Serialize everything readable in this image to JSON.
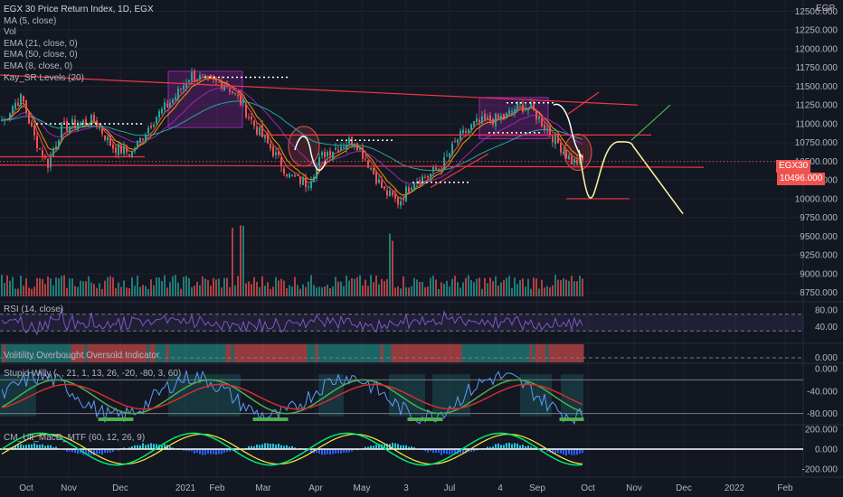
{
  "header": {
    "title": "EGX 30 Price Return Index, 1D, EGX",
    "currency": "EGP",
    "indicators": [
      "MA (5, close)",
      "Vol",
      "EMA (21, close, 0)",
      "EMA (50, close, 0)",
      "EMA (8, close, 0)",
      "Kay_SR Levels (20)"
    ]
  },
  "price_tag": {
    "symbol": "EGX30",
    "value": "10496.000"
  },
  "panes": {
    "rsi": {
      "label": "RSI (14, close)",
      "ticks": [
        "80.00",
        "40.00"
      ]
    },
    "volatility": {
      "label": "Volitility Overbought Oversold Indicator",
      "ticks": [
        "0.000"
      ]
    },
    "willy": {
      "label": "Stupid Willy (, , 21, 1, 13, 26, -20, -80, 3, 60)",
      "ticks": [
        "0.000",
        "-40.000",
        "-80.000"
      ]
    },
    "macd": {
      "label": "CM_Ult_MacD_MTF (60, 12, 26, 9)",
      "ticks": [
        "200.000",
        "0.000",
        "-200.000"
      ]
    }
  },
  "x_axis": [
    "Oct",
    "Nov",
    "Dec",
    "2021",
    "Feb",
    "Mar",
    "Apr",
    "May",
    "3",
    "Jul",
    "4",
    "Sep",
    "Oct",
    "Nov",
    "Dec",
    "2022",
    "Feb"
  ],
  "price_ticks": [
    "12500.000",
    "12250.000",
    "12000.000",
    "11750.000",
    "11500.000",
    "11250.000",
    "11000.000",
    "10750.000",
    "10500.000",
    "10250.000",
    "10000.000",
    "9750.000",
    "9500.000",
    "9250.000",
    "9000.000",
    "8750.000"
  ],
  "colors": {
    "bg": "#131722",
    "up": "#26a69a",
    "down": "#ef5350",
    "sr": "#f23645",
    "rsi": "#7e57c2",
    "projection": "#fff59d",
    "projection_up": "#4caf50"
  },
  "chart_data": {
    "type": "candlestick",
    "ylim": [
      8650,
      12650
    ],
    "close_path": [
      {
        "x": "Oct",
        "y": 11050
      },
      {
        "x": "Oct",
        "y": 11250
      },
      {
        "x": "Oct",
        "y": 11350
      },
      {
        "x": "Nov",
        "y": 10850
      },
      {
        "x": "Nov",
        "y": 10450
      },
      {
        "x": "Nov",
        "y": 10950
      },
      {
        "x": "Dec",
        "y": 11000
      },
      {
        "x": "Dec",
        "y": 11050
      },
      {
        "x": "Dec",
        "y": 10700
      },
      {
        "x": "2021",
        "y": 10600
      },
      {
        "x": "2021",
        "y": 11050
      },
      {
        "x": "2021",
        "y": 11350
      },
      {
        "x": "Feb",
        "y": 11650
      },
      {
        "x": "Feb",
        "y": 11600
      },
      {
        "x": "Feb",
        "y": 11550
      },
      {
        "x": "Mar",
        "y": 11550
      },
      {
        "x": "Mar",
        "y": 11300
      },
      {
        "x": "Mar",
        "y": 10950
      },
      {
        "x": "Apr",
        "y": 10650
      },
      {
        "x": "Apr",
        "y": 10300
      },
      {
        "x": "Apr",
        "y": 10200
      },
      {
        "x": "May",
        "y": 10600
      },
      {
        "x": "May",
        "y": 10700
      },
      {
        "x": "May",
        "y": 10800
      },
      {
        "x": "3",
        "y": 10450
      },
      {
        "x": "3",
        "y": 10100
      },
      {
        "x": "3",
        "y": 9950
      },
      {
        "x": "Jul",
        "y": 10250
      },
      {
        "x": "Jul",
        "y": 10300
      },
      {
        "x": "Jul",
        "y": 10450
      },
      {
        "x": "4",
        "y": 10800
      },
      {
        "x": "4",
        "y": 11000
      },
      {
        "x": "4",
        "y": 11050
      },
      {
        "x": "Sep",
        "y": 11100
      },
      {
        "x": "Sep",
        "y": 11250
      },
      {
        "x": "Sep",
        "y": 11200
      },
      {
        "x": "Oct",
        "y": 10900
      },
      {
        "x": "Oct",
        "y": 10496
      }
    ],
    "sr_levels": [
      10950,
      10850,
      10420
    ],
    "projection": [
      {
        "x": "Oct",
        "y": 10650
      },
      {
        "x": "Oct",
        "y": 10050
      },
      {
        "x": "Nov",
        "y": 10700
      },
      {
        "x": "Dec",
        "y": 9800
      }
    ],
    "last_close": 10496
  }
}
